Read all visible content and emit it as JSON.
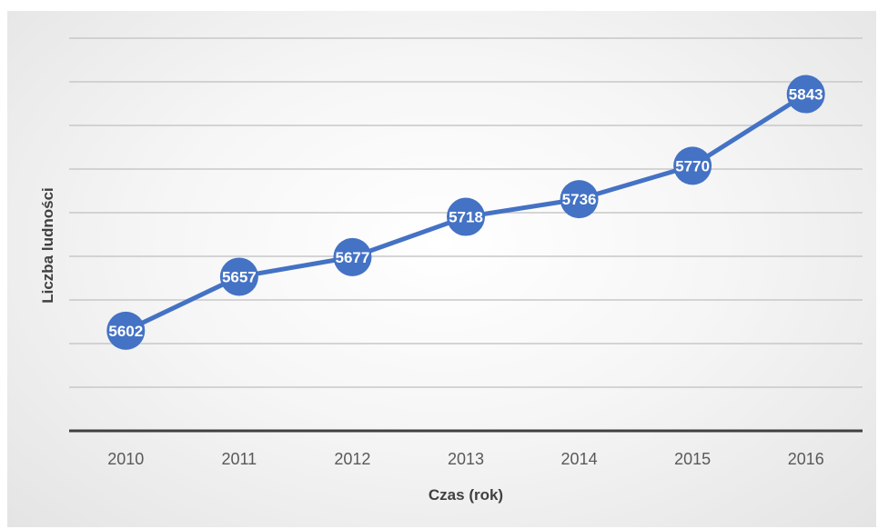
{
  "chart_data": {
    "type": "line",
    "title": "",
    "xlabel": "Czas (rok)",
    "ylabel": "Liczba ludności",
    "categories": [
      "2010",
      "2011",
      "2012",
      "2013",
      "2014",
      "2015",
      "2016"
    ],
    "series": [
      {
        "values": [
          5602,
          5657,
          5677,
          5718,
          5736,
          5770,
          5843
        ]
      }
    ],
    "ylim": [
      5500,
      5900
    ],
    "grid": true,
    "legend": "none",
    "data_labels": true,
    "show_y_tick_labels": false,
    "colors": {
      "series": "#4472c4",
      "gridline": "#c8c8c8",
      "axis": "#404040",
      "label_text": "#ffffff"
    }
  }
}
